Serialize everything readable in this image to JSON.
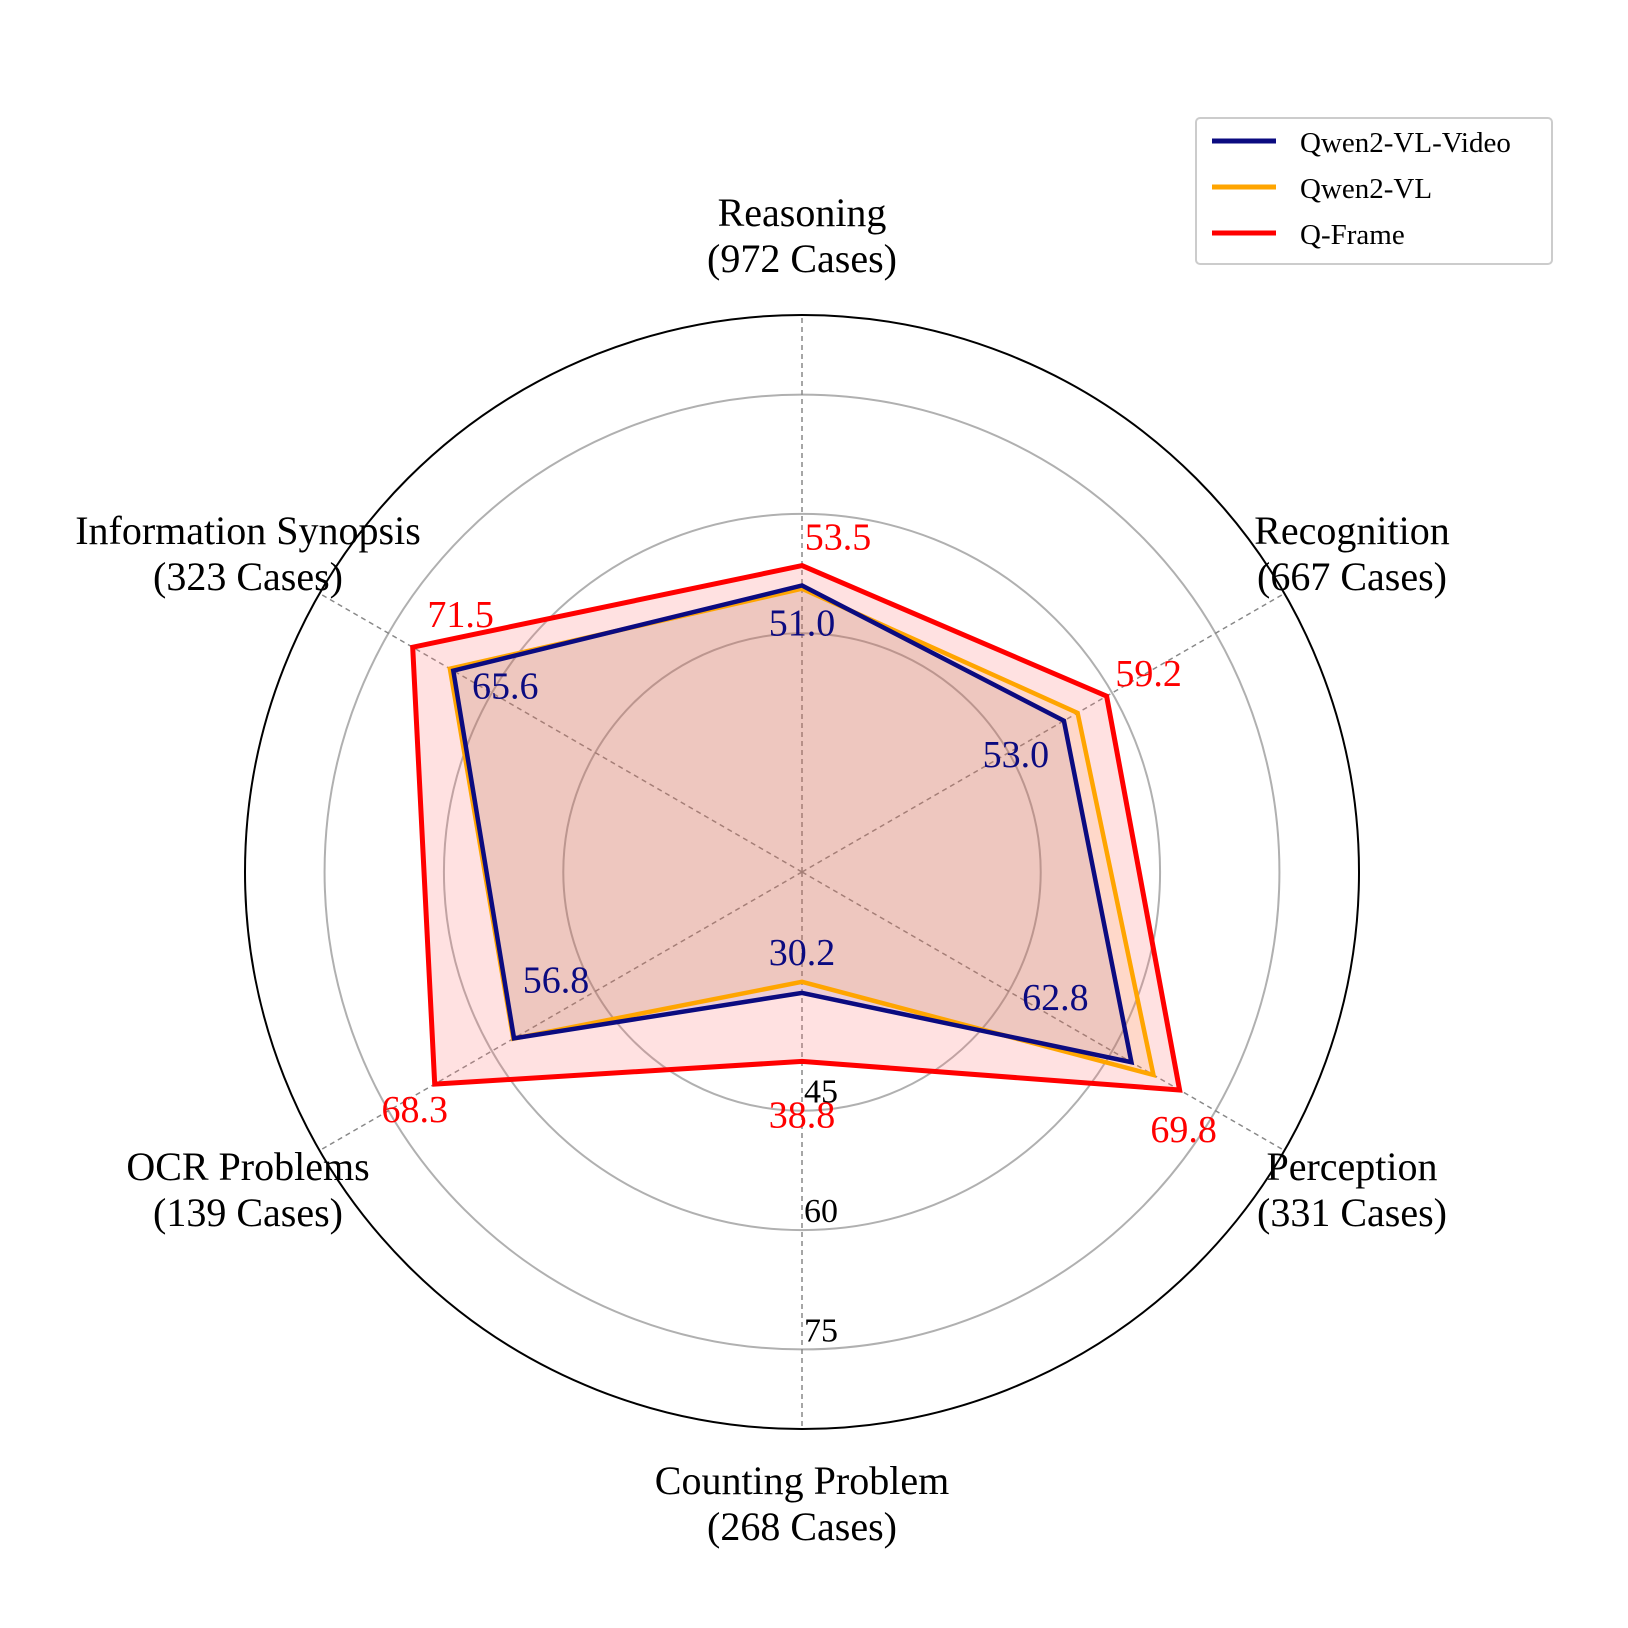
{
  "chart_data": {
    "type": "radar",
    "axes": [
      {
        "name": "Reasoning",
        "cases": "(972 Cases)"
      },
      {
        "name": "Recognition",
        "cases": "(667 Cases)"
      },
      {
        "name": "Perception",
        "cases": "(331 Cases)"
      },
      {
        "name": "Counting Problem",
        "cases": "(268 Cases)"
      },
      {
        "name": "OCR Problems",
        "cases": "(139 Cases)"
      },
      {
        "name": "Information Synopsis",
        "cases": "(323 Cases)"
      }
    ],
    "rlim": [
      15,
      85
    ],
    "rticks": [
      45,
      60,
      75
    ],
    "rtick_labels": [
      "45",
      "60",
      "75"
    ],
    "series": [
      {
        "name": "Qwen2-VL-Video",
        "color": "#0b0b80",
        "values": [
          51.0,
          53.0,
          62.8,
          30.2,
          56.8,
          65.6
        ],
        "labels": [
          "51.0",
          "53.0",
          "62.8",
          "30.2",
          "56.8",
          "65.6"
        ]
      },
      {
        "name": "Qwen2-VL",
        "color": "#ffa500",
        "values": [
          50.6,
          55.0,
          66.0,
          28.8,
          56.9,
          66.1
        ]
      },
      {
        "name": "Q-Frame",
        "color": "#ff0000",
        "fill": "#ffc0c0",
        "values": [
          53.5,
          59.2,
          69.8,
          38.8,
          68.3,
          71.5
        ],
        "labels": [
          "53.5",
          "59.2",
          "69.8",
          "38.8",
          "68.3",
          "71.5"
        ]
      }
    ],
    "legend_position": "top-right",
    "grid": true
  }
}
